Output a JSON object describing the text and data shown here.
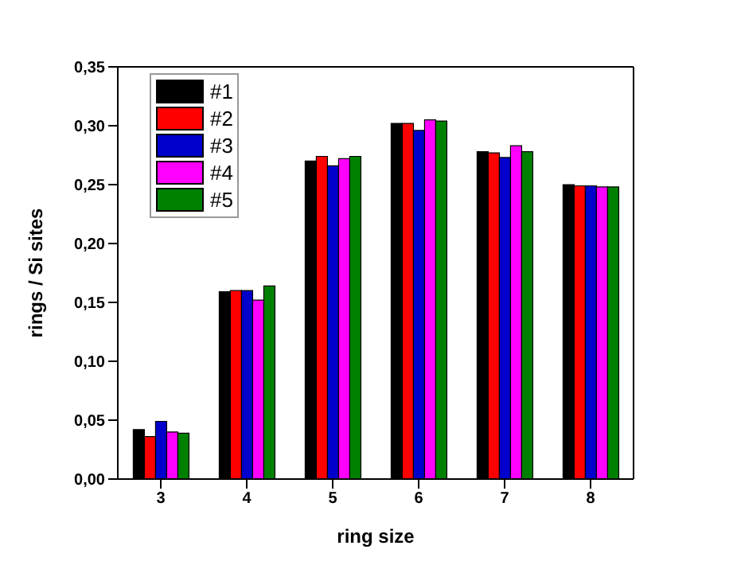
{
  "chart_data": {
    "type": "bar",
    "xlabel": "ring size",
    "ylabel": "rings / Si sites",
    "categories": [
      "3",
      "4",
      "5",
      "6",
      "7",
      "8"
    ],
    "series": [
      {
        "name": "#1",
        "color": "#000000",
        "values": [
          0.042,
          0.159,
          0.27,
          0.302,
          0.278,
          0.25
        ]
      },
      {
        "name": "#2",
        "color": "#ff0000",
        "values": [
          0.036,
          0.16,
          0.274,
          0.302,
          0.277,
          0.249
        ]
      },
      {
        "name": "#3",
        "color": "#0000cc",
        "values": [
          0.049,
          0.16,
          0.266,
          0.296,
          0.273,
          0.249
        ]
      },
      {
        "name": "#4",
        "color": "#ff00ff",
        "values": [
          0.04,
          0.152,
          0.272,
          0.305,
          0.283,
          0.248
        ]
      },
      {
        "name": "#5",
        "color": "#008000",
        "values": [
          0.039,
          0.164,
          0.274,
          0.304,
          0.278,
          0.248
        ]
      }
    ],
    "ylim": [
      0,
      0.35
    ],
    "yticks": [
      {
        "value": 0,
        "label": "0,00"
      },
      {
        "value": 0.05,
        "label": "0,05"
      },
      {
        "value": 0.1,
        "label": "0,10"
      },
      {
        "value": 0.15,
        "label": "0,15"
      },
      {
        "value": 0.2,
        "label": "0,20"
      },
      {
        "value": 0.25,
        "label": "0,25"
      },
      {
        "value": 0.3,
        "label": "0,30"
      },
      {
        "value": 0.35,
        "label": "0,35"
      }
    ],
    "grid": false,
    "legend": "top left"
  }
}
